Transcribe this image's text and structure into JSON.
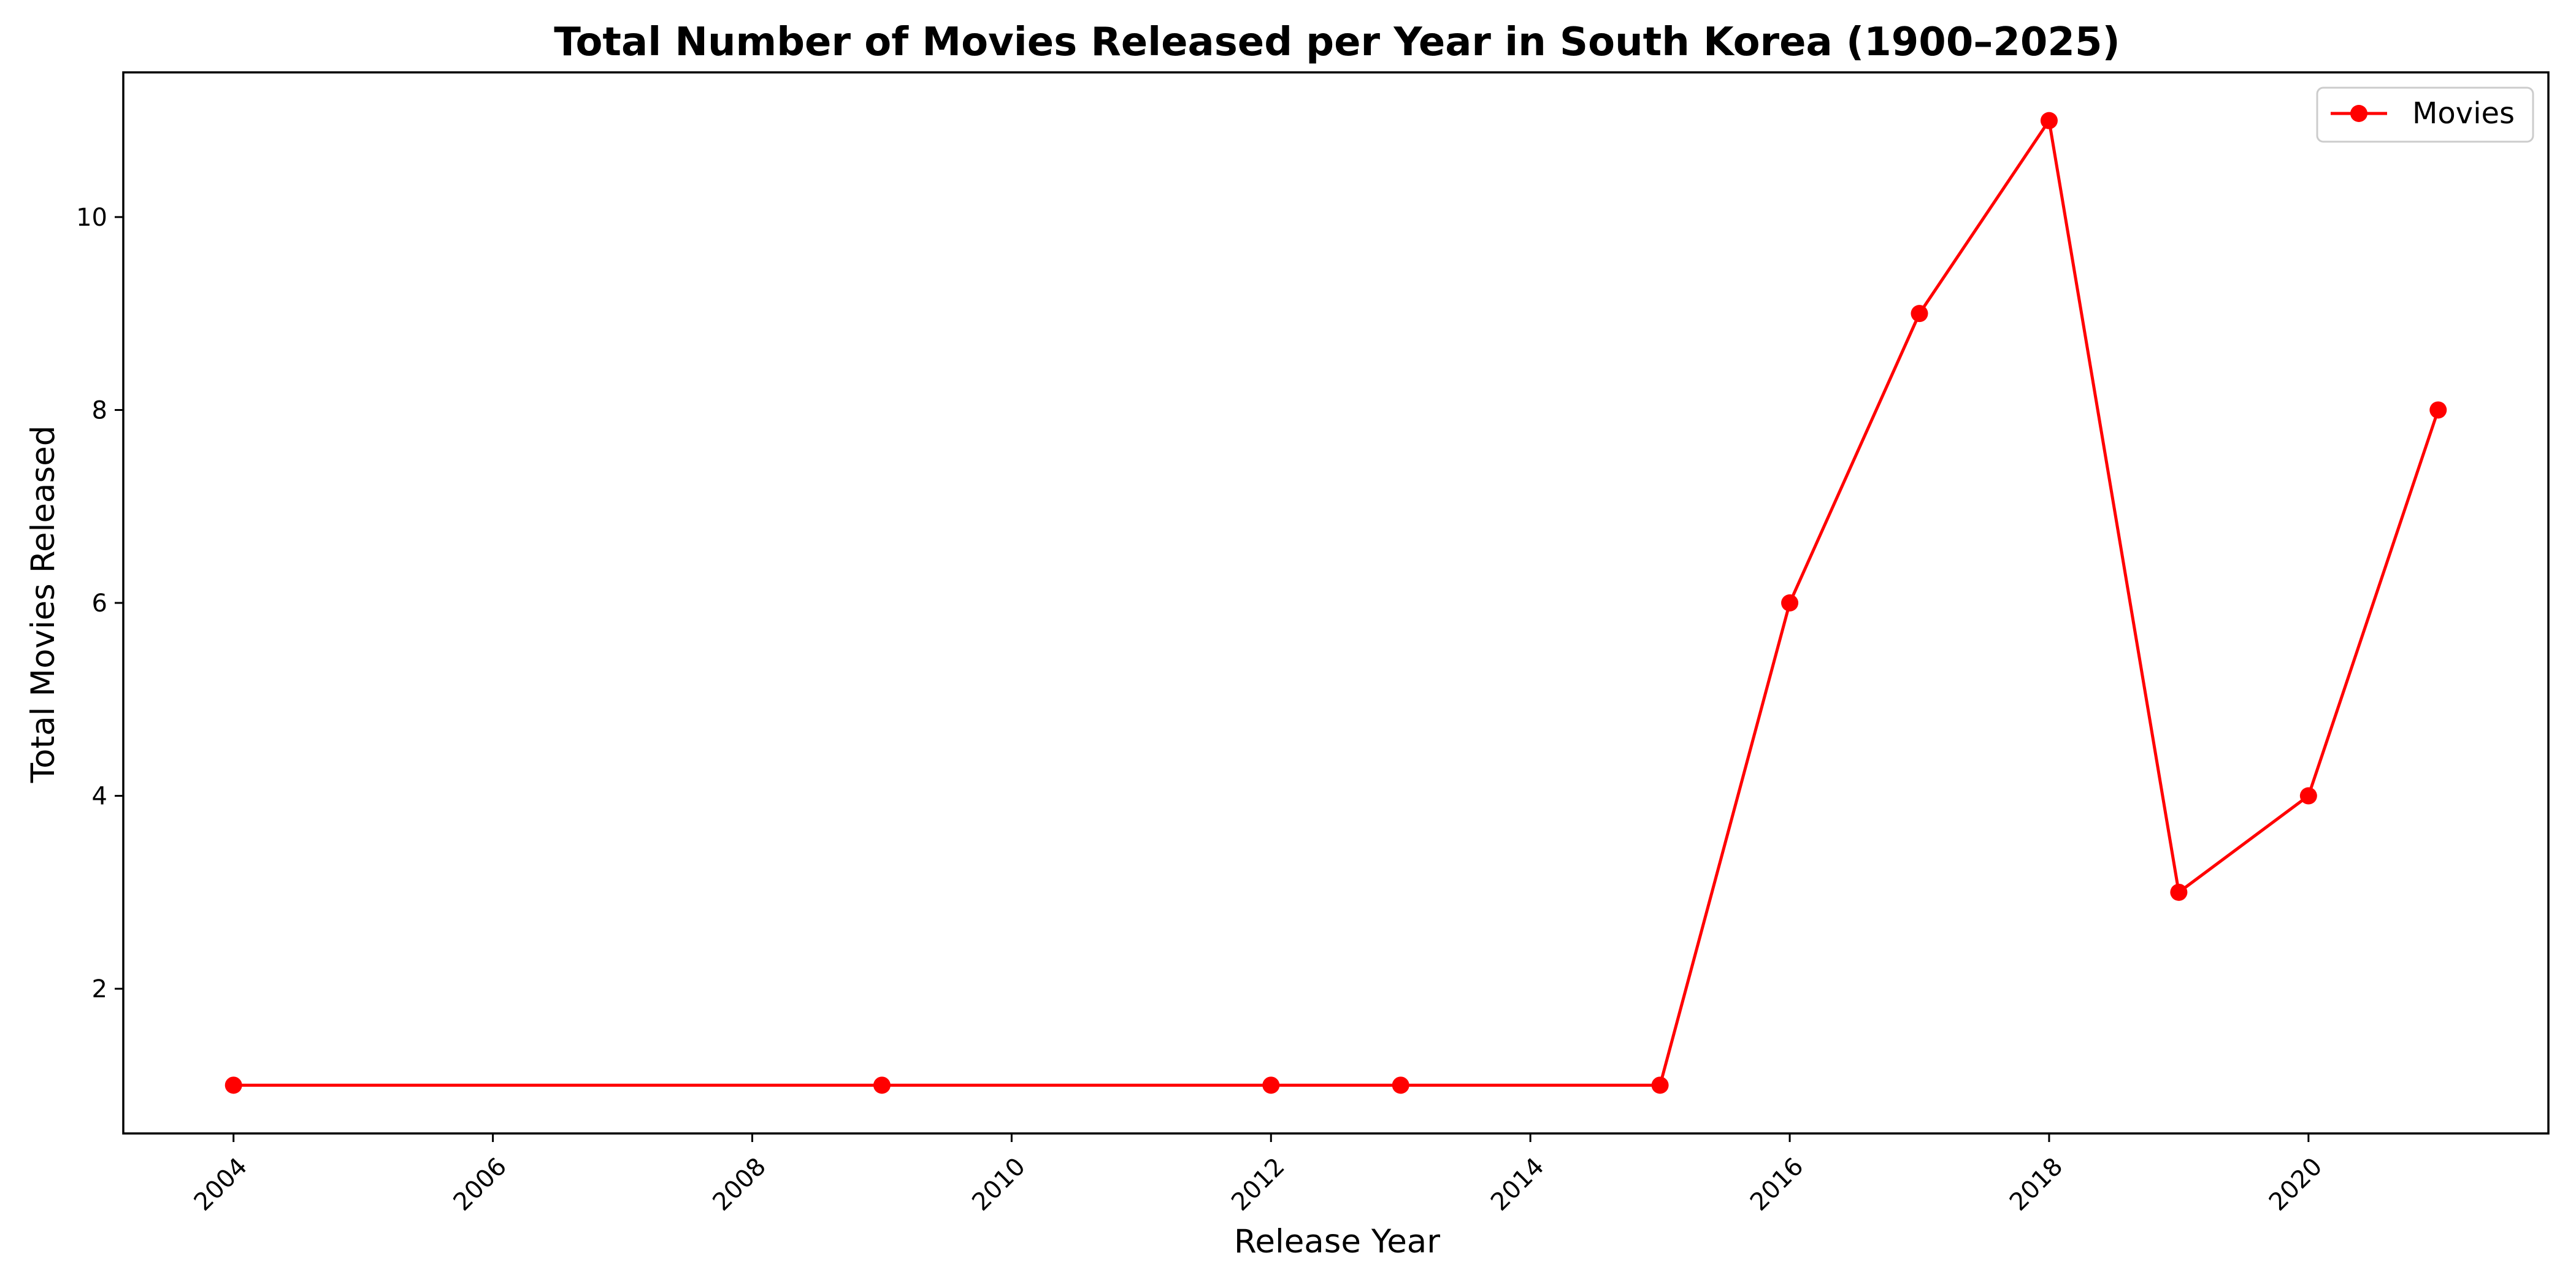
{
  "chart_data": {
    "type": "line",
    "title": "Total Number of Movies Released per Year in South Korea (1900–2025)",
    "xlabel": "Release Year",
    "ylabel": "Total Movies Released",
    "x": [
      2004,
      2009,
      2012,
      2013,
      2015,
      2016,
      2017,
      2018,
      2019,
      2020,
      2021
    ],
    "series": [
      {
        "name": "Movies",
        "color": "#ff0000",
        "values": [
          1,
          1,
          1,
          1,
          1,
          6,
          9,
          11,
          3,
          4,
          8
        ]
      }
    ],
    "xlim": [
      2003.15,
      2021.85
    ],
    "ylim": [
      0.5,
      11.5
    ],
    "xticks": [
      2004,
      2006,
      2008,
      2010,
      2012,
      2014,
      2016,
      2018,
      2020
    ],
    "xtick_labels": [
      "2004",
      "2006",
      "2008",
      "2010",
      "2012",
      "2014",
      "2016",
      "2018",
      "2020"
    ],
    "xtick_rotation": 45,
    "yticks": [
      2,
      4,
      6,
      8,
      10
    ],
    "ytick_labels": [
      "2",
      "4",
      "6",
      "8",
      "10"
    ],
    "grid": false,
    "legend": "top-right",
    "marker": "circle"
  }
}
